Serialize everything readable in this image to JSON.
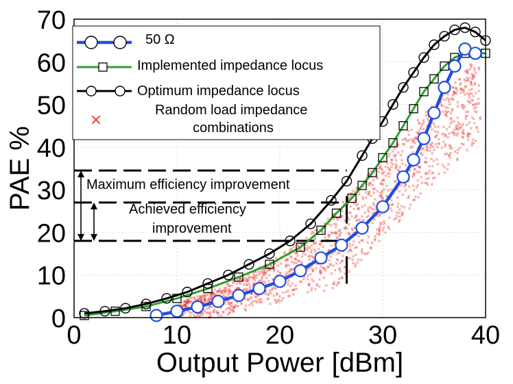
{
  "chart_data": {
    "type": "line",
    "title": "",
    "xlabel": "Output Power [dBm]",
    "ylabel": "PAE %",
    "xlim": [
      0,
      40
    ],
    "ylim": [
      0,
      70
    ],
    "xticks": [
      0,
      10,
      20,
      30,
      40
    ],
    "yticks": [
      0,
      10,
      20,
      30,
      40,
      50,
      60,
      70
    ],
    "grid": true,
    "legend_position": "top-left",
    "series": [
      {
        "name": "50 Ω",
        "color": "#1f4fe0",
        "marker": "circle",
        "x": [
          8,
          10,
          12,
          14,
          16,
          18,
          20,
          22,
          24,
          26,
          28,
          30,
          32,
          33,
          34,
          35,
          36,
          37,
          38,
          39
        ],
        "y": [
          0.5,
          1.5,
          2.5,
          3.8,
          5.2,
          6.8,
          8.5,
          11,
          14,
          17,
          21,
          26,
          33,
          37,
          42,
          48,
          54,
          59,
          63,
          62
        ]
      },
      {
        "name": "Implemented impedance locus",
        "color": "#2ca02c",
        "marker": "square",
        "x": [
          1,
          4,
          7,
          10,
          13,
          16,
          19,
          22,
          24,
          25.5,
          27,
          28,
          29,
          30,
          31,
          32,
          33,
          34,
          35,
          36,
          37,
          38,
          39,
          40
        ],
        "y": [
          0.5,
          1.5,
          2.6,
          4.5,
          6.8,
          9.5,
          12.5,
          16.5,
          20.5,
          24.5,
          28,
          31,
          34,
          37.5,
          41,
          45,
          49,
          53,
          56,
          59,
          61,
          62,
          62,
          62
        ]
      },
      {
        "name": "Optimum impedance locus",
        "color": "#000000",
        "marker": "circle",
        "x": [
          1,
          3,
          5,
          7,
          9,
          11,
          13,
          15,
          17,
          19,
          21,
          23,
          25,
          26.5,
          28,
          29,
          30,
          31,
          32,
          33,
          34,
          35,
          36,
          37,
          38,
          39,
          40
        ],
        "y": [
          1,
          1.5,
          2.2,
          3.2,
          4.5,
          6,
          8,
          10,
          12.5,
          15,
          18,
          22,
          27.5,
          32,
          38,
          42,
          46,
          50,
          54,
          57.5,
          61,
          64,
          66,
          67.5,
          68,
          67,
          65
        ]
      }
    ],
    "scatter_legend": "Random load impedance combinations",
    "scatter_color": "#e8342d",
    "annotations": {
      "max_improvement": "Maximum efficiency improvement",
      "achieved_line1": "Achieved efficiency",
      "achieved_line2": "improvement",
      "levels": {
        "optimum": 34.5,
        "implemented": 27,
        "fifty_ohm": 18
      },
      "reference_power": 26.5
    }
  }
}
